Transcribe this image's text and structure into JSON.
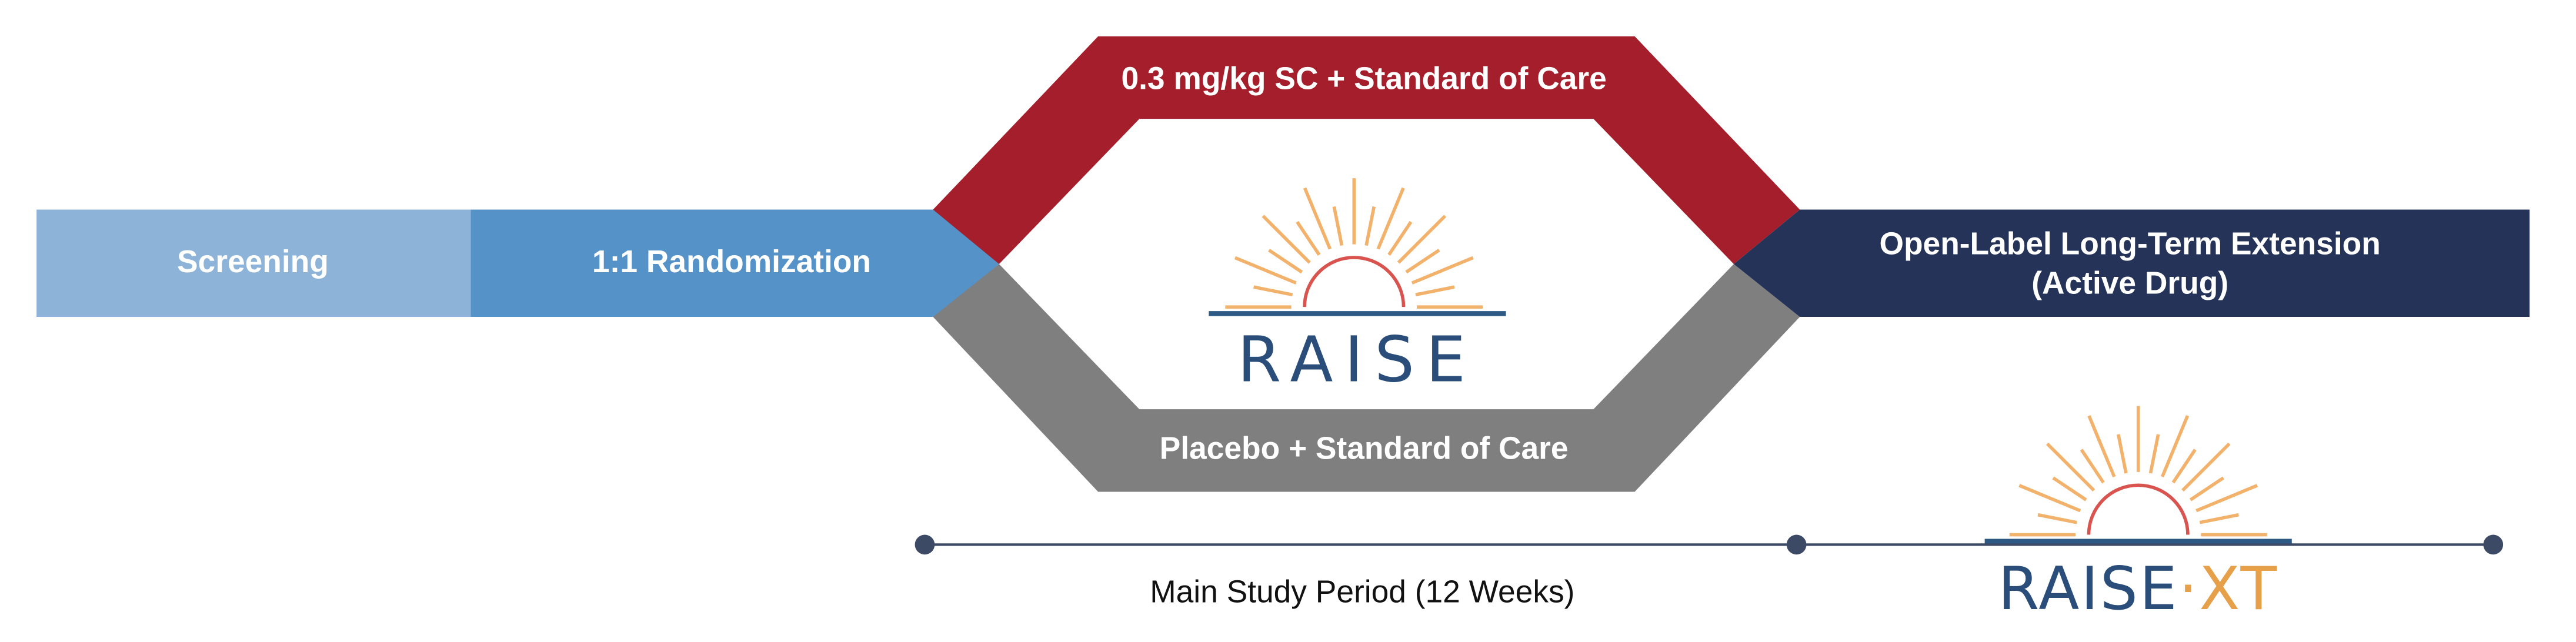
{
  "phases": [
    {
      "label": "Screening"
    },
    {
      "label": "1:1 Randomization"
    }
  ],
  "arms": {
    "treatment": "0.3 mg/kg SC + Standard of Care",
    "placebo": "Placebo + Standard of Care"
  },
  "extension": {
    "line1": "Open-Label Long-Term Extension",
    "line2": "(Active Drug)"
  },
  "logos": {
    "raise": "RAISE",
    "raise_xt": {
      "name": "RAISE",
      "separator": "·",
      "suffix": "XT"
    }
  },
  "timeline": {
    "main_period": "Main Study Period (12 Weeks)"
  }
}
